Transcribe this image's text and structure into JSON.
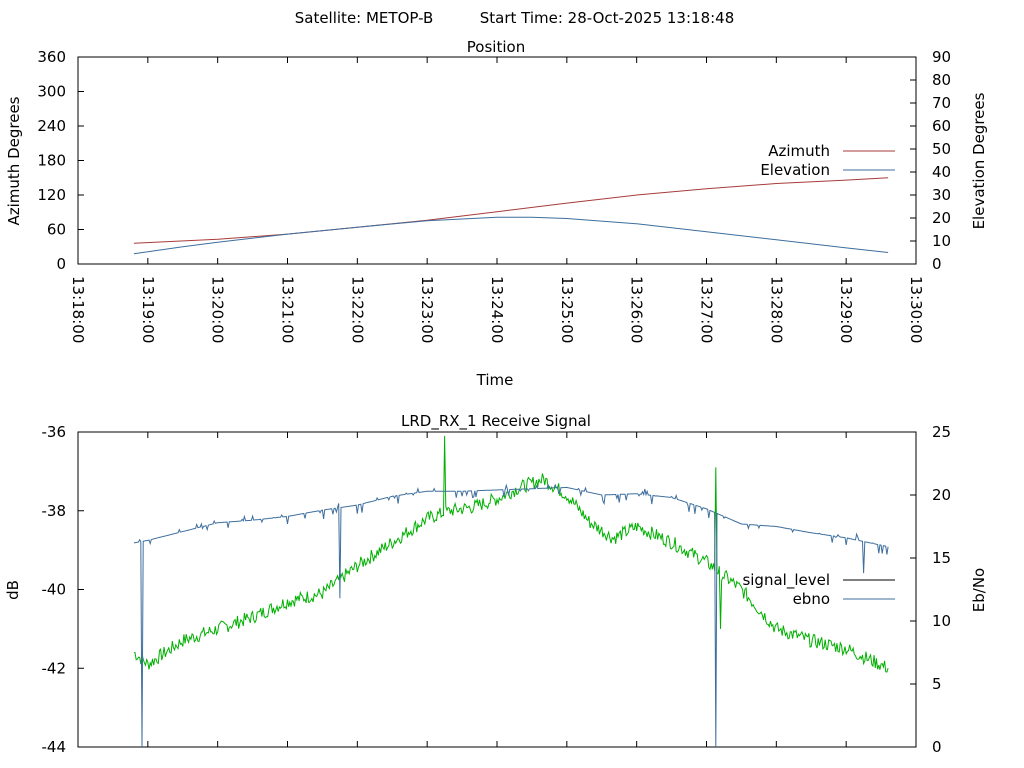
{
  "header": {
    "satellite_label": "Satellite: METOP-B",
    "start_time_label": "Start Time: 28-Oct-2025 13:18:48"
  },
  "chart_data": [
    {
      "type": "line",
      "title": "Position",
      "xlabel": "Time",
      "ylabel": "Azimuth Degrees",
      "y2label": "Elevation Degrees",
      "x_ticks": [
        "13:18:00",
        "13:19:00",
        "13:20:00",
        "13:21:00",
        "13:22:00",
        "13:23:00",
        "13:24:00",
        "13:25:00",
        "13:26:00",
        "13:27:00",
        "13:28:00",
        "13:29:00",
        "13:30:00"
      ],
      "xlim": [
        "13:18:00",
        "13:30:00"
      ],
      "ylim": [
        0,
        360
      ],
      "y_ticks": [
        0,
        60,
        120,
        180,
        240,
        300,
        360
      ],
      "y2lim": [
        0,
        90
      ],
      "y2_ticks": [
        0,
        10,
        20,
        30,
        40,
        50,
        60,
        70,
        80,
        90
      ],
      "legend": "right",
      "series": [
        {
          "name": "Azimuth",
          "axis": "left",
          "color": "#a83b3b",
          "x": [
            "13:18:48",
            "13:20:00",
            "13:21:00",
            "13:22:00",
            "13:23:00",
            "13:24:00",
            "13:25:00",
            "13:26:00",
            "13:27:00",
            "13:28:00",
            "13:29:00",
            "13:29:36"
          ],
          "y": [
            36,
            43,
            52,
            64,
            76,
            91,
            106,
            120,
            131,
            140,
            146,
            150
          ]
        },
        {
          "name": "Elevation",
          "axis": "right",
          "color": "#3d6e9e",
          "x": [
            "13:18:48",
            "13:19:30",
            "13:20:00",
            "13:21:00",
            "13:22:00",
            "13:23:00",
            "13:24:00",
            "13:24:30",
            "13:25:00",
            "13:26:00",
            "13:27:00",
            "13:28:00",
            "13:29:00",
            "13:29:36"
          ],
          "y": [
            4.5,
            7.5,
            9.5,
            13,
            16,
            18.8,
            20.3,
            20.3,
            19.8,
            17.5,
            14,
            10.5,
            7,
            5
          ]
        }
      ]
    },
    {
      "type": "line",
      "title": "LRD_RX_1 Receive Signal",
      "xlabel": "",
      "ylabel": "dB",
      "y2label": "Eb/No",
      "xlim": [
        "13:18:00",
        "13:30:00"
      ],
      "ylim": [
        -44,
        -36
      ],
      "y_ticks": [
        -44,
        -42,
        -40,
        -38,
        -36
      ],
      "y2lim": [
        0,
        25
      ],
      "y2_ticks": [
        0,
        5,
        10,
        15,
        20,
        25
      ],
      "legend": "right",
      "series": [
        {
          "name": "signal_level",
          "axis": "left",
          "color": "#00b000",
          "x": [
            "13:18:48",
            "13:19:00",
            "13:19:30",
            "13:20:00",
            "13:20:30",
            "13:21:00",
            "13:21:30",
            "13:22:00",
            "13:22:30",
            "13:23:00",
            "13:23:20",
            "13:23:40",
            "13:24:00",
            "13:24:20",
            "13:24:40",
            "13:25:00",
            "13:25:20",
            "13:25:40",
            "13:26:00",
            "13:26:30",
            "13:27:00",
            "13:27:30",
            "13:28:00",
            "13:28:30",
            "13:29:00",
            "13:29:36"
          ],
          "y": [
            -41.6,
            -41.9,
            -41.3,
            -41.0,
            -40.7,
            -40.3,
            -40.1,
            -39.4,
            -38.8,
            -38.2,
            -38.0,
            -37.9,
            -37.7,
            -37.4,
            -37.2,
            -37.6,
            -38.3,
            -38.7,
            -38.4,
            -38.8,
            -39.3,
            -40.0,
            -41.0,
            -41.3,
            -41.5,
            -42.0
          ],
          "spikes": [
            {
              "x": "13:23:15",
              "y": -36.1
            },
            {
              "x": "13:27:08",
              "y": -36.9
            },
            {
              "x": "13:27:12",
              "y": -41.0
            }
          ]
        },
        {
          "name": "ebno",
          "axis": "right",
          "color": "#3d6e9e",
          "x": [
            "13:18:48",
            "13:19:00",
            "13:19:30",
            "13:20:00",
            "13:20:30",
            "13:21:00",
            "13:21:30",
            "13:22:00",
            "13:22:30",
            "13:23:00",
            "13:23:30",
            "13:24:00",
            "13:24:30",
            "13:25:00",
            "13:25:30",
            "13:26:00",
            "13:26:30",
            "13:27:00",
            "13:27:30",
            "13:28:00",
            "13:28:30",
            "13:29:00",
            "13:29:36"
          ],
          "y": [
            16.2,
            16.4,
            17.1,
            17.8,
            18.0,
            18.3,
            18.8,
            19.2,
            19.9,
            20.3,
            20.3,
            20.4,
            20.5,
            20.6,
            20.0,
            20.1,
            19.8,
            18.9,
            17.7,
            17.5,
            17.0,
            16.6,
            15.9
          ],
          "spikes": [
            {
              "x": "13:18:55",
              "y": 0
            },
            {
              "x": "13:21:45",
              "y": 11.8
            },
            {
              "x": "13:27:08",
              "y": 0
            },
            {
              "x": "13:29:15",
              "y": 13.8
            }
          ]
        }
      ]
    }
  ]
}
